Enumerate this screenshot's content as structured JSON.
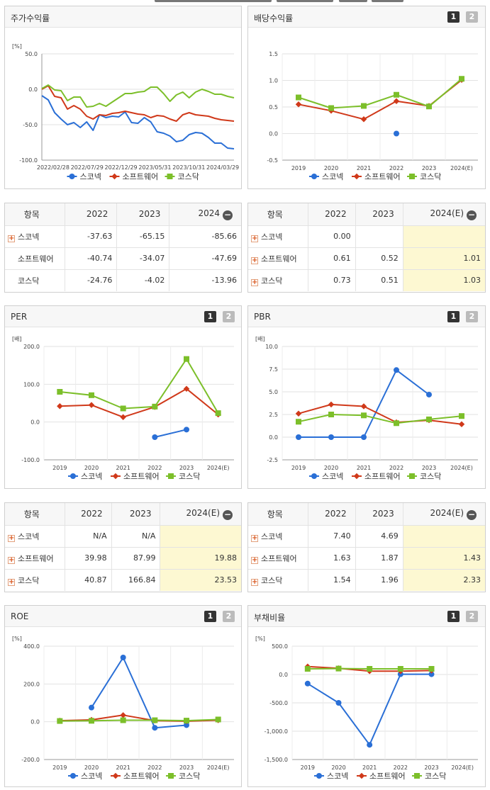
{
  "colors": {
    "scoreneck": "#2a6fd6",
    "software": "#d0391a",
    "kosdaq": "#7cbf2a"
  },
  "legend": {
    "items": [
      "스코넥",
      "소프트웨어",
      "코스닥"
    ]
  },
  "panels": {
    "stock": {
      "title": "주가수익률",
      "unit": "[%]",
      "pages": [],
      "chart_data": {
        "type": "line",
        "ylim": [
          -100,
          50
        ],
        "yticks": [
          "50.0",
          "0.0",
          "-50.0",
          "-100.0"
        ],
        "xticks": [
          "2022/02/28",
          "2022/07/29",
          "2022/12/29",
          "2023/05/31",
          "2023/10/31",
          "2024/03/29"
        ],
        "series": [
          {
            "name": "스코넥",
            "values": [
              -9,
              -15,
              -33,
              -42,
              -50,
              -47,
              -54,
              -46,
              -58,
              -36,
              -40,
              -38,
              -39,
              -32,
              -47,
              -48,
              -40,
              -46,
              -60,
              -62,
              -66,
              -74,
              -72,
              -64,
              -61,
              -62,
              -68,
              -76,
              -76,
              -83,
              -84
            ]
          },
          {
            "name": "소프트웨어",
            "values": [
              0,
              5,
              -10,
              -12,
              -28,
              -23,
              -28,
              -38,
              -42,
              -36,
              -37,
              -34,
              -33,
              -31,
              -33,
              -35,
              -36,
              -40,
              -37,
              -38,
              -42,
              -45,
              -36,
              -33,
              -36,
              -37,
              -38,
              -41,
              -43,
              -44,
              -45
            ]
          },
          {
            "name": "코스닥",
            "values": [
              1,
              6,
              -1,
              -2,
              -16,
              -11,
              -11,
              -25,
              -24,
              -20,
              -24,
              -18,
              -12,
              -6,
              -6,
              -4,
              -3,
              3,
              3,
              -6,
              -17,
              -8,
              -4,
              -12,
              -4,
              0,
              -3,
              -7,
              -7,
              -10,
              -12
            ]
          }
        ]
      }
    },
    "dividend": {
      "title": "배당수익률",
      "unit": "",
      "pages": [
        "1",
        "2"
      ],
      "chart_data": {
        "type": "line",
        "ylim": [
          -0.5,
          1.5
        ],
        "yticks": [
          "1.5",
          "1.0",
          "0.5",
          "0.0",
          "-0.5"
        ],
        "categories": [
          "2019",
          "2020",
          "2021",
          "2022",
          "2023",
          "2024(E)"
        ],
        "series": [
          {
            "name": "스코넥",
            "values": [
              null,
              null,
              null,
              0.0,
              null,
              null
            ]
          },
          {
            "name": "소프트웨어",
            "values": [
              0.55,
              0.43,
              0.27,
              0.61,
              0.52,
              1.01
            ]
          },
          {
            "name": "코스닥",
            "values": [
              0.68,
              0.48,
              0.52,
              0.73,
              0.51,
              1.03
            ]
          }
        ]
      }
    },
    "per": {
      "title": "PER",
      "unit": "[배]",
      "pages": [
        "1",
        "2"
      ],
      "chart_data": {
        "type": "line",
        "ylim": [
          -100,
          200
        ],
        "yticks": [
          "200.0",
          "100.0",
          "0.0",
          "-100.0"
        ],
        "categories": [
          "2019",
          "2020",
          "2021",
          "2022",
          "2023",
          "2024(E)"
        ],
        "series": [
          {
            "name": "스코넥",
            "values": [
              null,
              null,
              null,
              -40,
              -20,
              null
            ]
          },
          {
            "name": "소프트웨어",
            "values": [
              42,
              45,
              13,
              39.98,
              87.99,
              19.88
            ]
          },
          {
            "name": "코스닥",
            "values": [
              80,
              71,
              36,
              40.87,
              166.84,
              23.53
            ]
          }
        ]
      }
    },
    "pbr": {
      "title": "PBR",
      "unit": "[배]",
      "pages": [
        "1",
        "2"
      ],
      "chart_data": {
        "type": "line",
        "ylim": [
          -2.5,
          10
        ],
        "yticks": [
          "10.0",
          "7.5",
          "5.0",
          "2.5",
          "0.0",
          "-2.5"
        ],
        "categories": [
          "2019",
          "2020",
          "2021",
          "2022",
          "2023",
          "2024(E)"
        ],
        "series": [
          {
            "name": "스코넥",
            "values": [
              0,
              0,
              0,
              7.4,
              4.69,
              null
            ]
          },
          {
            "name": "소프트웨어",
            "values": [
              2.6,
              3.6,
              3.4,
              1.63,
              1.87,
              1.43
            ]
          },
          {
            "name": "코스닥",
            "values": [
              1.7,
              2.5,
              2.4,
              1.54,
              1.96,
              2.33
            ]
          }
        ]
      }
    },
    "roe": {
      "title": "ROE",
      "unit": "[%]",
      "pages": [
        "1",
        "2"
      ],
      "chart_data": {
        "type": "line",
        "ylim": [
          -200,
          400
        ],
        "yticks": [
          "400.0",
          "200.0",
          "0.0",
          "-200.0"
        ],
        "categories": [
          "2019",
          "2020",
          "2021",
          "2022",
          "2023",
          "2024(E)"
        ],
        "series": [
          {
            "name": "스코넥",
            "values": [
              null,
              75,
              340,
              -32,
              -18,
              null
            ]
          },
          {
            "name": "소프트웨어",
            "values": [
              6,
              10,
              35,
              6,
              3,
              8
            ]
          },
          {
            "name": "코스닥",
            "values": [
              4,
              5,
              8,
              8,
              6,
              12
            ]
          }
        ]
      }
    },
    "debt": {
      "title": "부채비율",
      "unit": "[%]",
      "pages": [
        "1",
        "2"
      ],
      "chart_data": {
        "type": "line",
        "ylim": [
          -1500,
          500
        ],
        "yticks": [
          "500.0",
          "0.0",
          "-500.0",
          "-1,000.0",
          "-1,500.0"
        ],
        "categories": [
          "2019",
          "2020",
          "2021",
          "2022",
          "2023",
          "2024(E)"
        ],
        "series": [
          {
            "name": "스코넥",
            "values": [
              -160,
              -500,
              -1240,
              5,
              5,
              null
            ]
          },
          {
            "name": "소프트웨어",
            "values": [
              140,
              110,
              60,
              60,
              70,
              null
            ]
          },
          {
            "name": "코스닥",
            "values": [
              100,
              105,
              100,
              100,
              100,
              null
            ]
          }
        ]
      }
    }
  },
  "tables": {
    "stock": {
      "header": [
        "항목",
        "2022",
        "2023",
        "2024"
      ],
      "rows": [
        {
          "name": "스코넥",
          "plus": true,
          "values": [
            "-37.63",
            "-65.15",
            "-85.66"
          ]
        },
        {
          "name": "소프트웨어",
          "plus": false,
          "values": [
            "-40.74",
            "-34.07",
            "-47.69"
          ]
        },
        {
          "name": "코스닥",
          "plus": false,
          "values": [
            "-24.76",
            "-4.02",
            "-13.96"
          ]
        }
      ]
    },
    "dividend": {
      "header": [
        "항목",
        "2022",
        "2023",
        "2024(E)"
      ],
      "rows": [
        {
          "name": "스코넥",
          "plus": true,
          "values": [
            "0.00",
            "",
            ""
          ]
        },
        {
          "name": "소프트웨어",
          "plus": true,
          "values": [
            "0.61",
            "0.52",
            "1.01"
          ]
        },
        {
          "name": "코스닥",
          "plus": true,
          "values": [
            "0.73",
            "0.51",
            "1.03"
          ]
        }
      ]
    },
    "per": {
      "header": [
        "항목",
        "2022",
        "2023",
        "2024(E)"
      ],
      "rows": [
        {
          "name": "스코넥",
          "plus": true,
          "values": [
            "N/A",
            "N/A",
            ""
          ]
        },
        {
          "name": "소프트웨어",
          "plus": true,
          "values": [
            "39.98",
            "87.99",
            "19.88"
          ]
        },
        {
          "name": "코스닥",
          "plus": true,
          "values": [
            "40.87",
            "166.84",
            "23.53"
          ]
        }
      ]
    },
    "pbr": {
      "header": [
        "항목",
        "2022",
        "2023",
        "2024(E)"
      ],
      "rows": [
        {
          "name": "스코넥",
          "plus": true,
          "values": [
            "7.40",
            "4.69",
            ""
          ]
        },
        {
          "name": "소프트웨어",
          "plus": true,
          "values": [
            "1.63",
            "1.87",
            "1.43"
          ]
        },
        {
          "name": "코스닥",
          "plus": true,
          "values": [
            "1.54",
            "1.96",
            "2.33"
          ]
        }
      ]
    }
  }
}
